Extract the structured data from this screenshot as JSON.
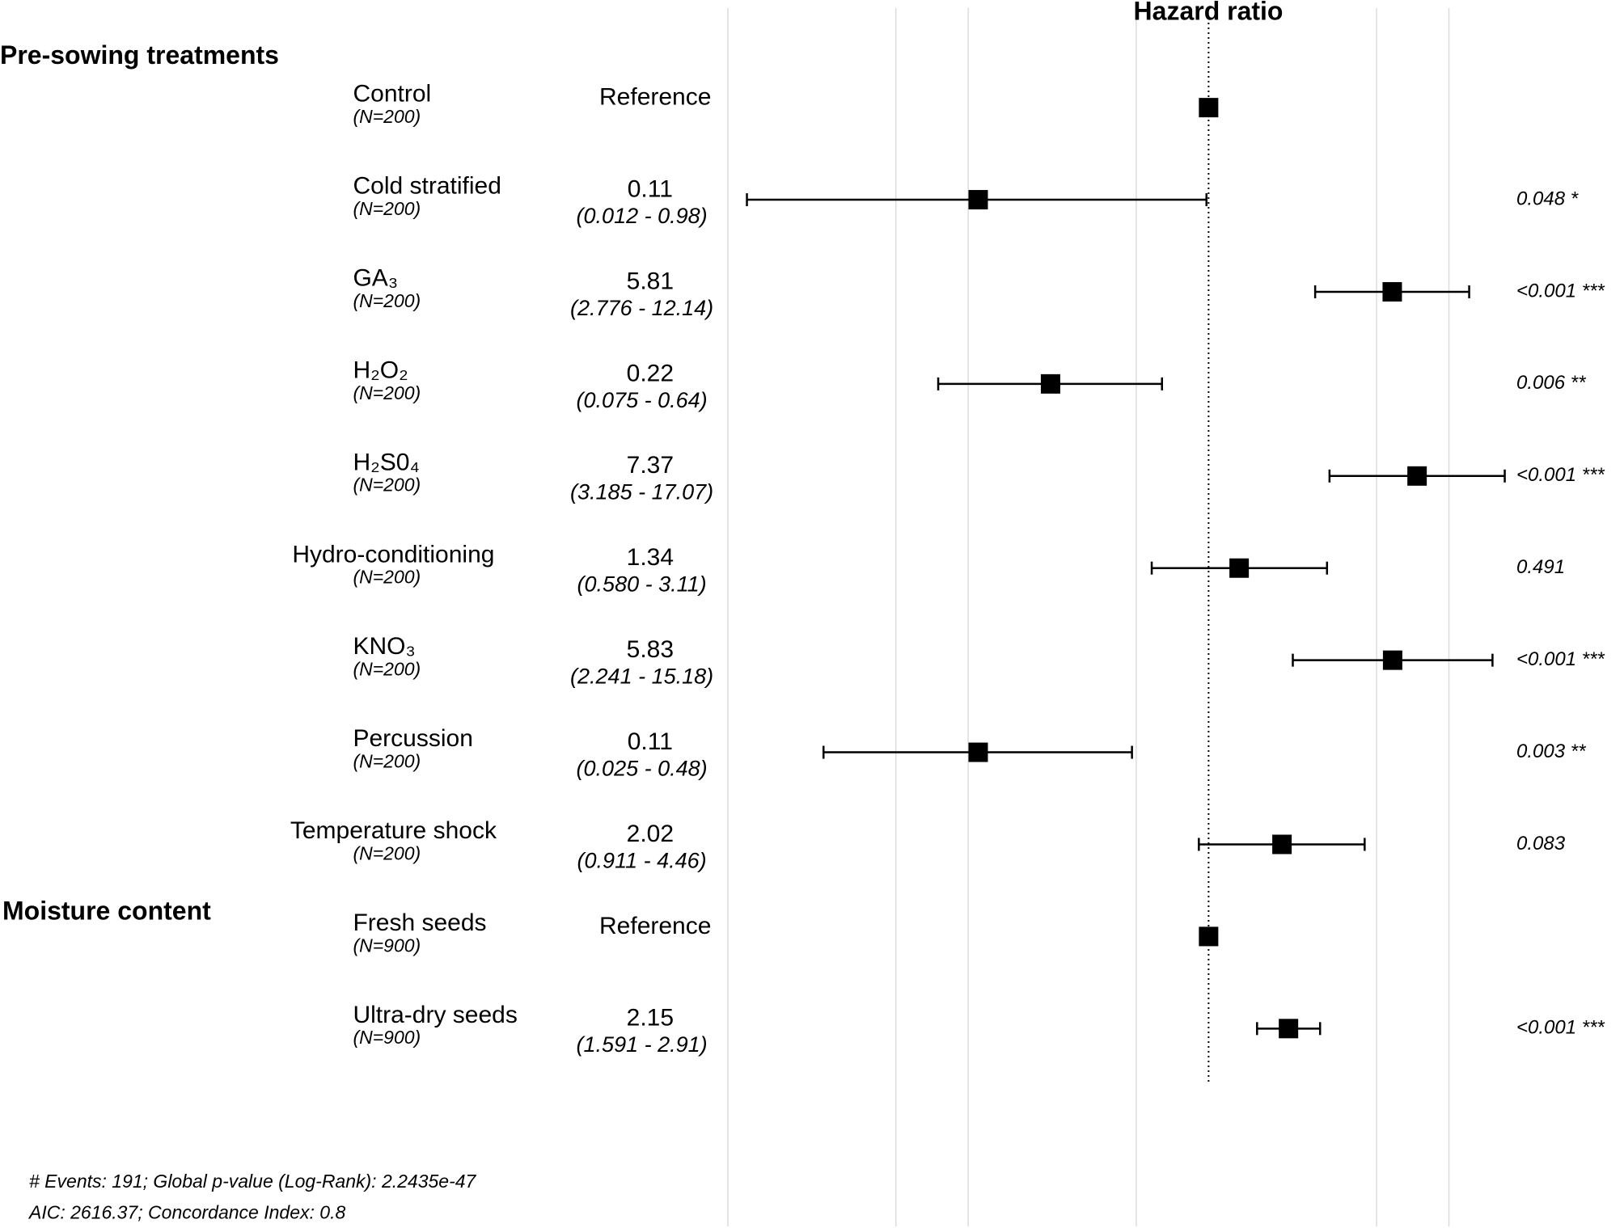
{
  "chart_data": {
    "type": "forest",
    "title": "Hazard ratio",
    "log_x": true,
    "xlim": [
      0.01,
      20
    ],
    "xticks": [
      0.01,
      0.05,
      0.1,
      0.5,
      1,
      5,
      10
    ],
    "grid": true,
    "reference": 1,
    "color": "#000000",
    "groups": [
      {
        "name": "Pre-sowing treatments",
        "rows": [
          {
            "label": "Control",
            "n": "(N=200)",
            "note": "Reference"
          },
          {
            "label": "Cold stratified",
            "n": "(N=200)",
            "estimate": 0.11,
            "ci_low": 0.012,
            "ci_high": 0.98,
            "ci_label": "(0.012 -  0.98)",
            "p_label": "0.048 *"
          },
          {
            "label": "GA₃",
            "n": "(N=200)",
            "estimate": 5.81,
            "ci_low": 2.776,
            "ci_high": 12.14,
            "ci_label": "(2.776 - 12.14)",
            "p_label": "<0.001 ***"
          },
          {
            "label": "H₂O₂",
            "n": "(N=200)",
            "estimate": 0.22,
            "ci_low": 0.075,
            "ci_high": 0.64,
            "ci_label": "(0.075 -  0.64)",
            "p_label": "0.006 **"
          },
          {
            "label": "H₂S0₄",
            "n": "(N=200)",
            "estimate": 7.37,
            "ci_low": 3.185,
            "ci_high": 17.07,
            "ci_label": "(3.185 - 17.07)",
            "p_label": "<0.001 ***"
          },
          {
            "label": "Hydro-conditioning",
            "n": "(N=200)",
            "estimate": 1.34,
            "ci_low": 0.58,
            "ci_high": 3.11,
            "ci_label": "(0.580 -  3.11)",
            "p_label": "0.491"
          },
          {
            "label": "KNO₃",
            "n": "(N=200)",
            "estimate": 5.83,
            "ci_low": 2.241,
            "ci_high": 15.18,
            "ci_label": "(2.241 - 15.18)",
            "p_label": "<0.001 ***"
          },
          {
            "label": "Percussion",
            "n": "(N=200)",
            "estimate": 0.11,
            "ci_low": 0.025,
            "ci_high": 0.48,
            "ci_label": "(0.025 -  0.48)",
            "p_label": "0.003 **"
          },
          {
            "label": "Temperature shock",
            "n": "(N=200)",
            "estimate": 2.02,
            "ci_low": 0.911,
            "ci_high": 4.46,
            "ci_label": "(0.911 -  4.46)",
            "p_label": "0.083"
          }
        ]
      },
      {
        "name": "Moisture content",
        "rows": [
          {
            "label": "Fresh seeds",
            "n": "(N=900)",
            "note": "Reference"
          },
          {
            "label": "Ultra-dry seeds",
            "n": "(N=900)",
            "estimate": 2.15,
            "ci_low": 1.591,
            "ci_high": 2.91,
            "ci_label": "(1.591 -  2.91)",
            "p_label": "<0.001 ***"
          }
        ]
      }
    ],
    "footnotes": [
      "# Events: 191; Global p-value (Log-Rank): 2.2435e-47",
      "AIC: 2616.37; Concordance Index: 0.8"
    ]
  }
}
